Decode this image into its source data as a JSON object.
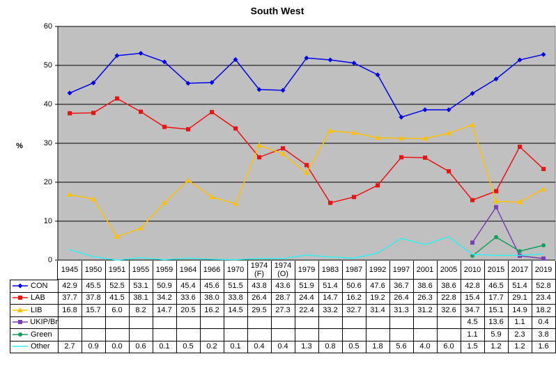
{
  "chart_data": {
    "type": "line",
    "title": "South West",
    "y_label": "%",
    "categories": [
      "1945",
      "1950",
      "1951",
      "1955",
      "1959",
      "1964",
      "1966",
      "1970",
      "1974 (F)",
      "1974 (O)",
      "1979",
      "1983",
      "1987",
      "1992",
      "1997",
      "2001",
      "2005",
      "2010",
      "2015",
      "2017",
      "2019"
    ],
    "ylim": [
      0,
      60
    ],
    "yticks": [
      0,
      10,
      20,
      30,
      40,
      50,
      60
    ],
    "grid": true,
    "series": [
      {
        "name": "CON",
        "color": "#0000ee",
        "marker": "diamond",
        "values": [
          42.9,
          45.5,
          52.5,
          53.1,
          50.9,
          45.4,
          45.6,
          51.5,
          43.8,
          43.6,
          51.9,
          51.4,
          50.6,
          47.6,
          36.7,
          38.6,
          38.6,
          42.8,
          46.5,
          51.4,
          52.8
        ],
        "value_labels": [
          "42.9",
          "45.5",
          "52.5",
          "53.1",
          "50.9",
          "45.4",
          "45.6",
          "51.5",
          "43.8",
          "43.6",
          "51.9",
          "51.4",
          "50.6",
          "47.6",
          "36.7",
          "38.6",
          "38.6",
          "42.8",
          "46.5",
          "51.4",
          "52.8"
        ]
      },
      {
        "name": "LAB",
        "color": "#ee1111",
        "marker": "square",
        "values": [
          37.7,
          37.8,
          41.5,
          38.1,
          34.2,
          33.6,
          38.0,
          33.8,
          26.4,
          28.7,
          24.4,
          14.7,
          16.2,
          19.2,
          26.4,
          26.3,
          22.8,
          15.4,
          17.7,
          29.1,
          23.4
        ],
        "value_labels": [
          "37.7",
          "37.8",
          "41.5",
          "38.1",
          "34.2",
          "33.6",
          "38.0",
          "33.8",
          "26.4",
          "28.7",
          "24.4",
          "14.7",
          "16.2",
          "19.2",
          "26.4",
          "26.3",
          "22.8",
          "15.4",
          "17.7",
          "29.1",
          "23.4"
        ]
      },
      {
        "name": "LIB",
        "color": "#ffc000",
        "marker": "triangle",
        "values": [
          16.8,
          15.7,
          6.0,
          8.2,
          14.7,
          20.5,
          16.2,
          14.5,
          29.5,
          27.3,
          22.4,
          33.2,
          32.7,
          31.4,
          31.3,
          31.2,
          32.6,
          34.7,
          15.1,
          14.9,
          18.2
        ],
        "value_labels": [
          "16.8",
          "15.7",
          "6.0",
          "8.2",
          "14.7",
          "20.5",
          "16.2",
          "14.5",
          "29.5",
          "27.3",
          "22.4",
          "33.2",
          "32.7",
          "31.4",
          "31.3",
          "31.2",
          "32.6",
          "34.7",
          "15.1",
          "14.9",
          "18.2"
        ]
      },
      {
        "name": "UKIP/Br",
        "color": "#7a3fb0",
        "marker": "square",
        "values": [
          null,
          null,
          null,
          null,
          null,
          null,
          null,
          null,
          null,
          null,
          null,
          null,
          null,
          null,
          null,
          null,
          null,
          4.5,
          13.6,
          1.1,
          0.4
        ],
        "value_labels": [
          null,
          null,
          null,
          null,
          null,
          null,
          null,
          null,
          null,
          null,
          null,
          null,
          null,
          null,
          null,
          null,
          null,
          "4.5",
          "13.6",
          "1.1",
          "0.4"
        ]
      },
      {
        "name": "Green",
        "color": "#10a060",
        "marker": "circle",
        "values": [
          null,
          null,
          null,
          null,
          null,
          null,
          null,
          null,
          null,
          null,
          null,
          null,
          null,
          null,
          null,
          null,
          null,
          1.1,
          5.9,
          2.3,
          3.8
        ],
        "value_labels": [
          null,
          null,
          null,
          null,
          null,
          null,
          null,
          null,
          null,
          null,
          null,
          null,
          null,
          null,
          null,
          null,
          null,
          "1.1",
          "5.9",
          "2.3",
          "3.8"
        ]
      },
      {
        "name": "Other",
        "color": "#33eeee",
        "marker": "none",
        "values": [
          2.7,
          0.9,
          0.0,
          0.6,
          0.1,
          0.5,
          0.2,
          0.1,
          0.4,
          0.4,
          1.3,
          0.8,
          0.5,
          1.8,
          5.6,
          4.0,
          6.0,
          1.5,
          1.2,
          1.2,
          1.6
        ],
        "value_labels": [
          "2.7",
          "0.9",
          "0.0",
          "0.6",
          "0.1",
          "0.5",
          "0.2",
          "0.1",
          "0.4",
          "0.4",
          "1.3",
          "0.8",
          "0.5",
          "1.8",
          "5.6",
          "4.0",
          "6.0",
          "1.5",
          "1.2",
          "1.2",
          "1.6"
        ]
      }
    ]
  }
}
